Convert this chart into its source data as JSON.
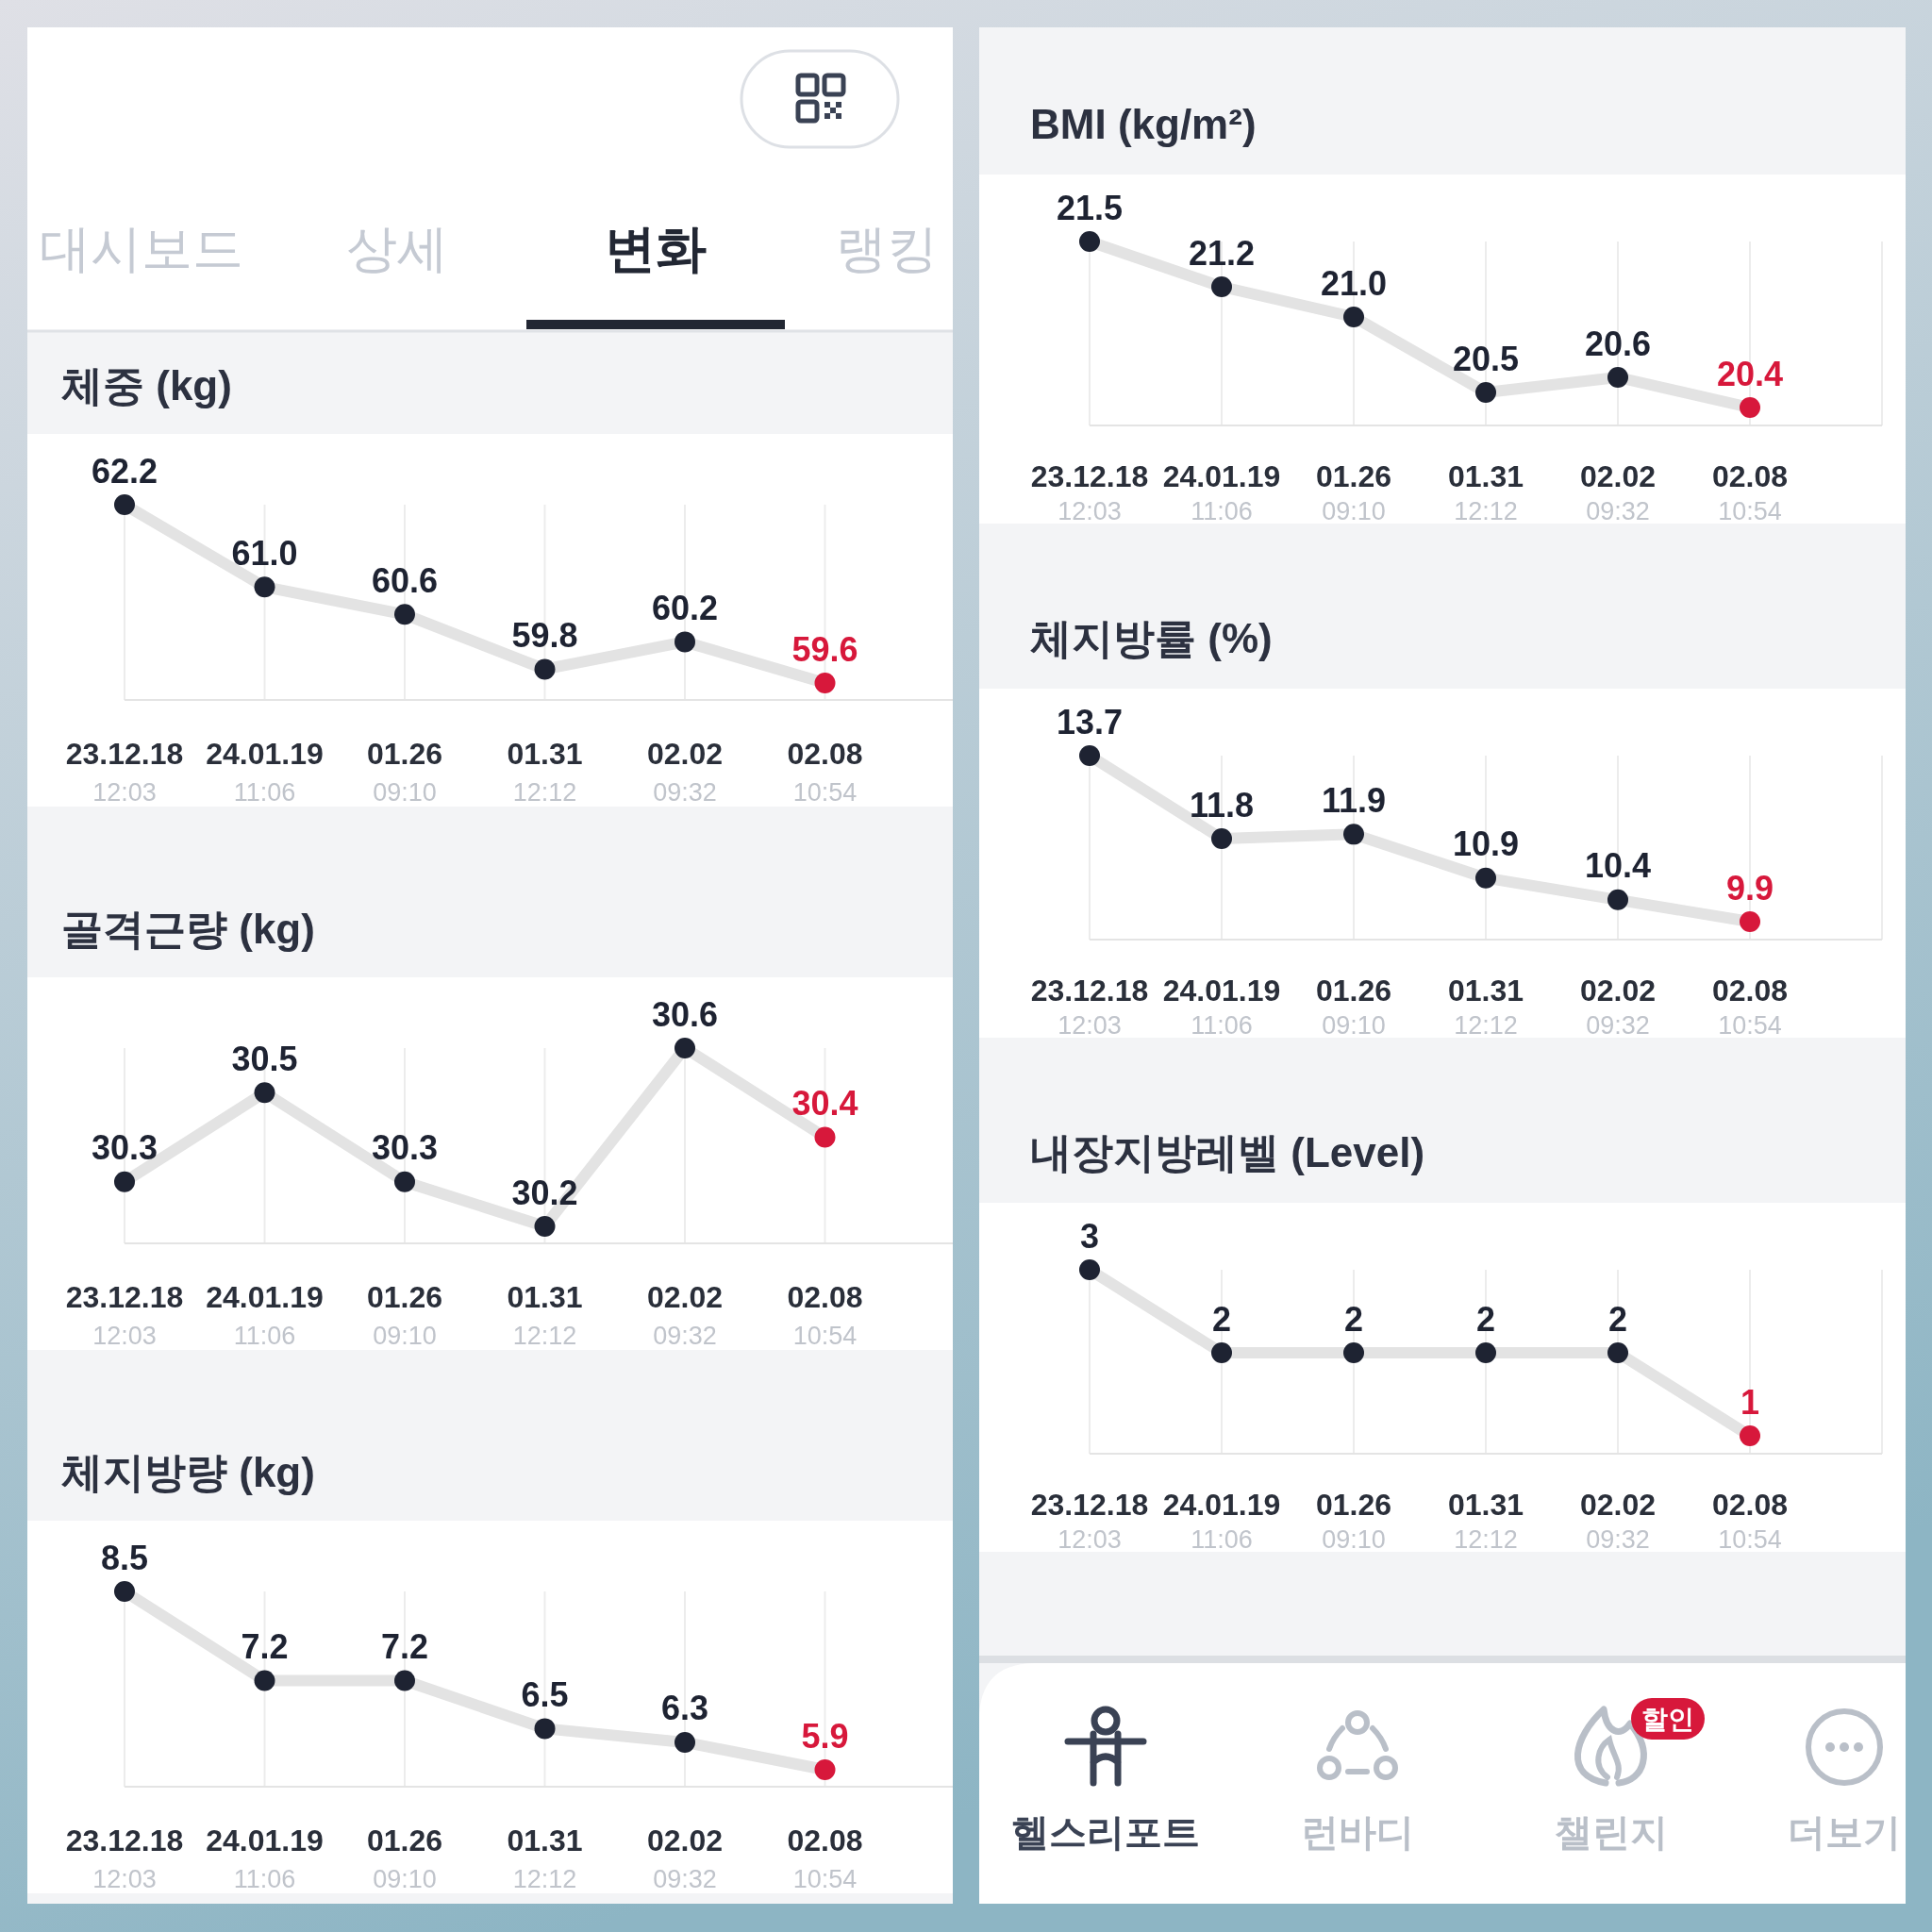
{
  "chart_data": [
    {
      "type": "other",
      "annotations": [
        "대시보드",
        "상세",
        "변화",
        "랭킹"
      ]
    },
    {
      "type": "line",
      "title": "체중 (kg)",
      "categories": [
        "23.12.18\n12:03",
        "24.01.19\n11:06",
        "01.26\n09:10",
        "01.31\n12:12",
        "02.02\n09:32",
        "02.08\n10:54"
      ],
      "values": [
        62.2,
        61.0,
        60.6,
        59.8,
        60.2,
        59.6
      ],
      "value_labels": [
        "62.2",
        "61.0",
        "60.6",
        "59.8",
        "60.2",
        "59.6"
      ],
      "color": "#e3e3e3",
      "colors": [
        "#1e2332",
        "#1e2332",
        "#1e2332",
        "#1e2332",
        "#1e2332",
        "#d7183b"
      ],
      "marker": "circle",
      "grid": "x"
    },
    {
      "type": "line",
      "title": "골격근량 (kg)",
      "categories": [
        "23.12.18\n12:03",
        "24.01.19\n11:06",
        "01.26\n09:10",
        "01.31\n12:12",
        "02.02\n09:32",
        "02.08\n10:54"
      ],
      "values": [
        30.3,
        30.5,
        30.3,
        30.2,
        30.6,
        30.4
      ],
      "value_labels": [
        "30.3",
        "30.5",
        "30.3",
        "30.2",
        "30.6",
        "30.4"
      ],
      "color": "#e3e3e3",
      "colors": [
        "#1e2332",
        "#1e2332",
        "#1e2332",
        "#1e2332",
        "#1e2332",
        "#d7183b"
      ],
      "marker": "circle",
      "grid": "x"
    },
    {
      "type": "line",
      "title": "체지방량 (kg)",
      "categories": [
        "23.12.18\n12:03",
        "24.01.19\n11:06",
        "01.26\n09:10",
        "01.31\n12:12",
        "02.02\n09:32",
        "02.08\n10:54"
      ],
      "values": [
        8.5,
        7.2,
        7.2,
        6.5,
        6.3,
        5.9
      ],
      "value_labels": [
        "8.5",
        "7.2",
        "7.2",
        "6.5",
        "6.3",
        "5.9"
      ],
      "color": "#e3e3e3",
      "colors": [
        "#1e2332",
        "#1e2332",
        "#1e2332",
        "#1e2332",
        "#1e2332",
        "#d7183b"
      ],
      "marker": "circle",
      "grid": "x"
    },
    {
      "type": "line",
      "title": "BMI (kg/m²)",
      "categories": [
        "23.12.18\n12:03",
        "24.01.19\n11:06",
        "01.26\n09:10",
        "01.31\n12:12",
        "02.02\n09:32",
        "02.08\n10:54"
      ],
      "values": [
        21.5,
        21.2,
        21.0,
        20.5,
        20.6,
        20.4
      ],
      "value_labels": [
        "21.5",
        "21.2",
        "21.0",
        "20.5",
        "20.6",
        "20.4"
      ],
      "color": "#e3e3e3",
      "colors": [
        "#1e2332",
        "#1e2332",
        "#1e2332",
        "#1e2332",
        "#1e2332",
        "#d7183b"
      ],
      "marker": "circle",
      "grid": "x"
    },
    {
      "type": "line",
      "title": "체지방률 (%)",
      "categories": [
        "23.12.18\n12:03",
        "24.01.19\n11:06",
        "01.26\n09:10",
        "01.31\n12:12",
        "02.02\n09:32",
        "02.08\n10:54"
      ],
      "values": [
        13.7,
        11.8,
        11.9,
        10.9,
        10.4,
        9.9
      ],
      "value_labels": [
        "13.7",
        "11.8",
        "11.9",
        "10.9",
        "10.4",
        "9.9"
      ],
      "color": "#e3e3e3",
      "colors": [
        "#1e2332",
        "#1e2332",
        "#1e2332",
        "#1e2332",
        "#1e2332",
        "#d7183b"
      ],
      "marker": "circle",
      "grid": "x"
    },
    {
      "type": "line",
      "title": "내장지방레벨 (Level)",
      "categories": [
        "23.12.18\n12:03",
        "24.01.19\n11:06",
        "01.26\n09:10",
        "01.31\n12:12",
        "02.02\n09:32",
        "02.08\n10:54"
      ],
      "values": [
        3,
        2,
        2,
        2,
        2,
        1
      ],
      "data_labels": true,
      "color": "#e3e3e3",
      "colors": [
        "#1e2332",
        "#1e2332",
        "#1e2332",
        "#1e2332",
        "#1e2332",
        "#d7183b"
      ],
      "marker": "circle",
      "grid": "x"
    },
    {
      "type": "other",
      "annotations": [
        "헬스리포트",
        "런바디",
        "챌린지",
        "더보기",
        "할인"
      ]
    }
  ]
}
